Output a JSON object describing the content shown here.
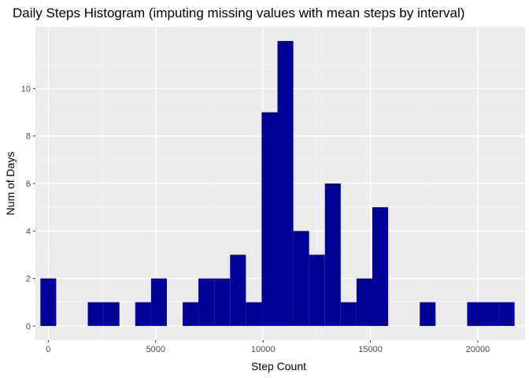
{
  "chart_data": {
    "type": "bar",
    "title": "Daily Steps Histogram (imputing missing values with mean steps by interval)",
    "xlabel": "Step Count",
    "ylabel": "Num of Days",
    "xlim": [
      -600,
      22200
    ],
    "ylim": [
      -0.6,
      12.6
    ],
    "xticks": [
      0,
      5000,
      10000,
      15000,
      20000
    ],
    "xtick_labels": [
      "0",
      "5000",
      "10000",
      "15000",
      "20000"
    ],
    "yticks": [
      0,
      2,
      4,
      6,
      8,
      10
    ],
    "ytick_labels": [
      "0",
      "2",
      "4",
      "6",
      "8",
      "10"
    ],
    "bin_width": 736,
    "bin_centers": [
      0,
      736,
      1472,
      2208,
      2944,
      3680,
      4416,
      5152,
      5888,
      6624,
      7360,
      8096,
      8832,
      9568,
      10304,
      11040,
      11776,
      12512,
      13248,
      13984,
      14720,
      15456,
      16192,
      16928,
      17664,
      18400,
      19136,
      19872,
      20608,
      21344
    ],
    "values": [
      2,
      0,
      0,
      1,
      1,
      0,
      1,
      2,
      0,
      1,
      2,
      2,
      3,
      1,
      9,
      12,
      4,
      3,
      6,
      1,
      2,
      5,
      0,
      0,
      1,
      0,
      0,
      1,
      1,
      1
    ],
    "bar_color": "#000099",
    "panel_color": "#ebebeb",
    "grid": true,
    "legend": "none"
  }
}
